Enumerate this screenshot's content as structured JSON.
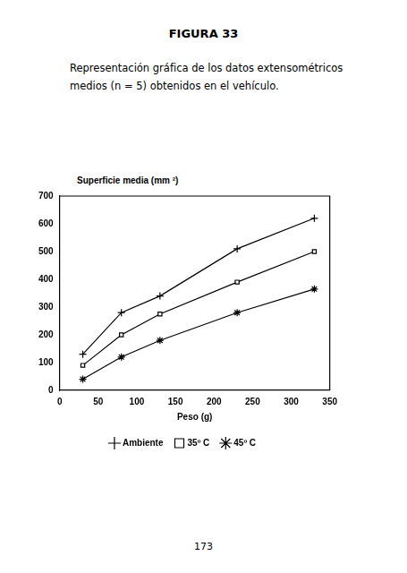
{
  "page": {
    "heading": "FIGURA 33",
    "caption": "Representación gráfica de los datos extensométricos medios (n = 5) obtenidos en el vehículo.",
    "page_number": "173"
  },
  "chart_data": {
    "type": "line",
    "y_label": "Superficie media (mm ²)",
    "x_label": "Peso (g)",
    "x": [
      30,
      80,
      130,
      230,
      330
    ],
    "series": [
      {
        "name": "Ambiente",
        "color": "#000000",
        "marker": "plus",
        "values": [
          130,
          280,
          340,
          510,
          620
        ]
      },
      {
        "name": "35º C",
        "color": "#000000",
        "marker": "square",
        "values": [
          90,
          200,
          275,
          390,
          500
        ]
      },
      {
        "name": "45º C",
        "color": "#000000",
        "marker": "star",
        "values": [
          40,
          120,
          180,
          280,
          365
        ]
      }
    ],
    "xlim": [
      0,
      350
    ],
    "xticks": [
      0,
      50,
      100,
      150,
      200,
      250,
      300,
      350
    ],
    "ylim": [
      0,
      700
    ],
    "yticks": [
      0,
      100,
      200,
      300,
      400,
      500,
      600,
      700
    ],
    "grid": false,
    "legend": "bottom"
  }
}
